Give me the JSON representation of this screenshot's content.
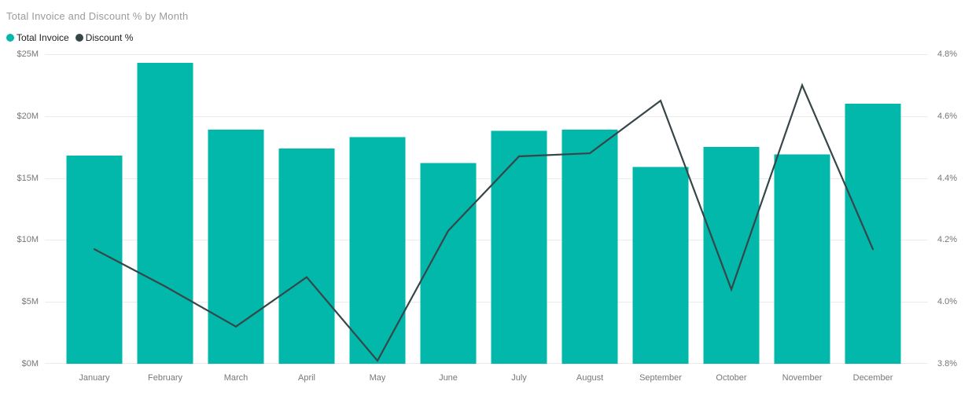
{
  "title": "Total Invoice and Discount % by Month",
  "legend": [
    {
      "label": "Total Invoice",
      "color": "#01B8AA"
    },
    {
      "label": "Discount %",
      "color": "#374649"
    }
  ],
  "colors": {
    "bar": "#01B8AA",
    "line": "#374649",
    "gridline": "#ebebeb",
    "axis_text": "#777777",
    "title_text": "#9b9b9b",
    "background": "#ffffff"
  },
  "chart_data": {
    "type": "combo-bar-line",
    "title": "Total Invoice and Discount % by Month",
    "categories": [
      "January",
      "February",
      "March",
      "April",
      "May",
      "June",
      "July",
      "August",
      "September",
      "October",
      "November",
      "December"
    ],
    "series": [
      {
        "name": "Total Invoice",
        "type": "bar",
        "axis": "left",
        "unit": "$M",
        "color": "#01B8AA",
        "values": [
          16.8,
          24.3,
          18.9,
          17.4,
          18.3,
          16.2,
          18.8,
          18.9,
          15.9,
          17.5,
          16.9,
          21.0
        ]
      },
      {
        "name": "Discount %",
        "type": "line",
        "axis": "right",
        "unit": "%",
        "color": "#374649",
        "values": [
          4.17,
          4.05,
          3.92,
          4.08,
          3.81,
          4.23,
          4.47,
          4.48,
          4.65,
          4.04,
          4.7,
          4.17
        ]
      }
    ],
    "left_axis": {
      "label": "",
      "min": 0,
      "max": 25,
      "ticks": [
        "$0M",
        "$5M",
        "$10M",
        "$15M",
        "$20M",
        "$25M"
      ]
    },
    "right_axis": {
      "label": "",
      "min": 3.8,
      "max": 4.8,
      "ticks": [
        "3.8%",
        "4.0%",
        "4.2%",
        "4.4%",
        "4.6%",
        "4.8%"
      ]
    },
    "grid": true,
    "legend_position": "top-left"
  }
}
